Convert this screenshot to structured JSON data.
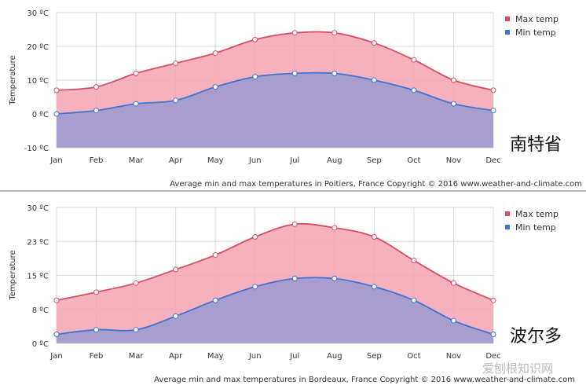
{
  "colors": {
    "max_line": "#d64f62",
    "max_fill": "#f5a3b3",
    "min_line": "#3f74d4",
    "min_fill": "#a59dcd",
    "grid": "#d8d8d8",
    "divider": "#8a8a8a"
  },
  "watermark": "爱刨根知识网",
  "chart_data": [
    {
      "type": "area",
      "city_label": "南特省",
      "caption": "Average min and max temperatures in Poitiers, France   Copyright © 2016 www.weather-and-climate.com",
      "categories": [
        "Jan",
        "Feb",
        "Mar",
        "Apr",
        "May",
        "Jun",
        "Jul",
        "Aug",
        "Sep",
        "Oct",
        "Nov",
        "Dec"
      ],
      "ylabel": "Temperature",
      "ylim": [
        -10,
        30
      ],
      "yticks": [
        -10,
        0,
        10,
        20,
        30
      ],
      "ytick_labels": [
        "-10 ºC",
        "0 ºC",
        "10 ºC",
        "20 ºC",
        "30 ºC"
      ],
      "series": [
        {
          "name": "Max temp",
          "values": [
            7,
            8,
            12,
            15,
            18,
            22,
            24,
            24,
            21,
            16,
            10,
            7
          ]
        },
        {
          "name": "Min temp",
          "values": [
            0,
            1,
            3,
            4,
            8,
            11,
            12,
            12,
            10,
            7,
            3,
            1
          ]
        }
      ]
    },
    {
      "type": "area",
      "city_label": "波尔多",
      "caption": "Average min and max temperatures in Bordeaux, France   Copyright © 2016 www.weather-and-climate.com",
      "categories": [
        "Jan",
        "Feb",
        "Mar",
        "Apr",
        "May",
        "Jun",
        "Jul",
        "Aug",
        "Sep",
        "Oct",
        "Nov",
        "Dec"
      ],
      "ylabel": "Temperature",
      "ylim": [
        0,
        30
      ],
      "yticks": [
        0,
        7.5,
        15,
        22.5,
        30
      ],
      "ytick_labels": [
        "0 ºC",
        "8 ºC",
        "15 ºC",
        "23 ºC",
        "30 ºC"
      ],
      "series": [
        {
          "name": "Max temp",
          "values": [
            9.5,
            11.3,
            13.3,
            16.3,
            19.5,
            23.5,
            26.3,
            25.5,
            23.5,
            18.3,
            13.3,
            9.5
          ]
        },
        {
          "name": "Min temp",
          "values": [
            2,
            3,
            3,
            6,
            9.5,
            12.5,
            14.3,
            14.3,
            12.5,
            9.5,
            5,
            2
          ]
        }
      ]
    }
  ]
}
